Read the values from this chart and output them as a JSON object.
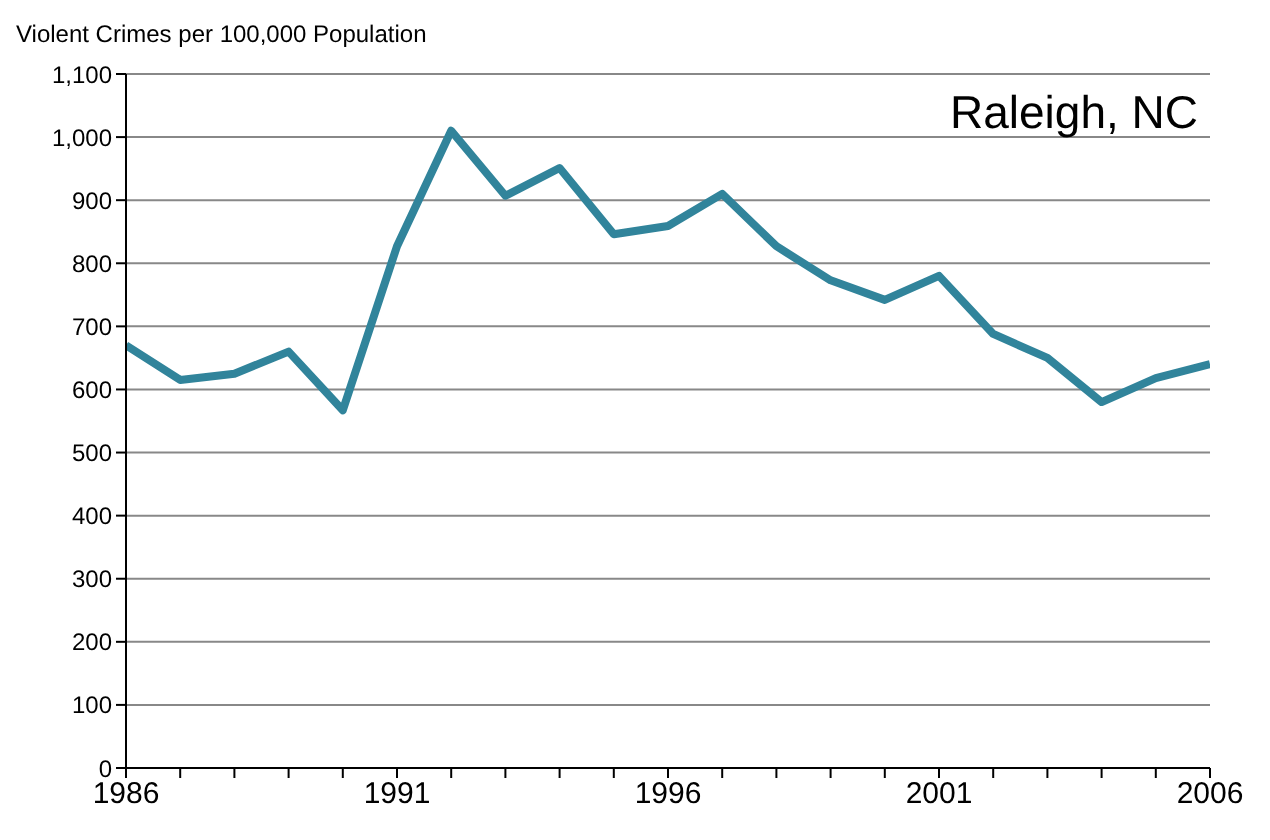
{
  "chart_data": {
    "type": "line",
    "ylabel": "Violent Crimes per 100,000 Population",
    "annotations": [
      "Raleigh, NC"
    ],
    "x": [
      1986,
      1987,
      1988,
      1989,
      1990,
      1991,
      1992,
      1993,
      1994,
      1995,
      1996,
      1997,
      1998,
      1999,
      2000,
      2001,
      2002,
      2003,
      2004,
      2005,
      2006
    ],
    "series": [
      {
        "color": "#31849b",
        "values": [
          670,
          615,
          625,
          660,
          567,
          827,
          1010,
          907,
          951,
          846,
          859,
          910,
          827,
          773,
          742,
          780,
          688,
          650,
          580,
          618,
          640
        ]
      }
    ],
    "xlim": [
      1986,
      2006
    ],
    "xticks": [
      1986,
      {
        "value": 1987,
        "label": null
      },
      {
        "value": 1988,
        "label": null
      },
      {
        "value": 1989,
        "label": null
      },
      {
        "value": 1990,
        "label": null
      },
      1991,
      {
        "value": 1992,
        "label": null
      },
      {
        "value": 1993,
        "label": null
      },
      {
        "value": 1994,
        "label": null
      },
      {
        "value": 1995,
        "label": null
      },
      1996,
      {
        "value": 1997,
        "label": null
      },
      {
        "value": 1998,
        "label": null
      },
      {
        "value": 1999,
        "label": null
      },
      {
        "value": 2000,
        "label": null
      },
      2001,
      {
        "value": 2002,
        "label": null
      },
      {
        "value": 2003,
        "label": null
      },
      {
        "value": 2004,
        "label": null
      },
      {
        "value": 2005,
        "label": null
      },
      2006
    ],
    "ylim": [
      0,
      1100
    ],
    "yticks": [
      0,
      100,
      200,
      300,
      400,
      500,
      600,
      700,
      800,
      900,
      {
        "value": 1000,
        "label": "1,000"
      },
      {
        "value": 1100,
        "label": "1,100"
      }
    ],
    "grid": "y",
    "marker": "none",
    "line_style": "solid"
  }
}
